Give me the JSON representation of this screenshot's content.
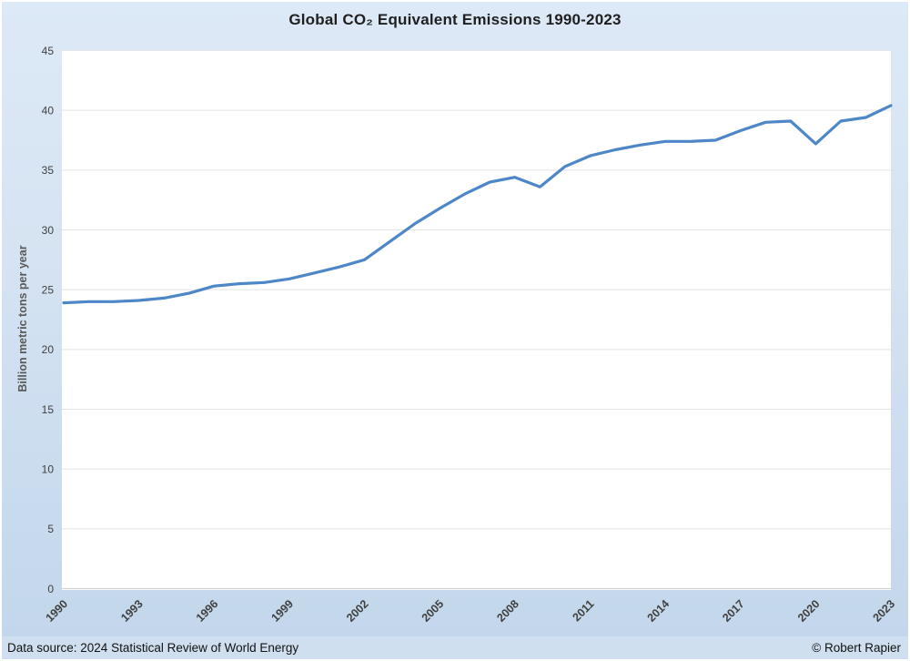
{
  "footer": {
    "source": "Data source: 2024 Statistical Review of World Energy",
    "credit": "© Robert Rapier"
  },
  "colors": {
    "line": "#4e87c7",
    "gridline": "#e4e4e4",
    "axis_line": "#d2d2d2",
    "plot_background": "#ffffff",
    "page_background_top": "#dde9f6",
    "page_background_bottom": "#c2d6eb",
    "tick_label": "#404040",
    "title_text": "#1f1f1f",
    "y_axis_title_text": "#595959"
  },
  "chart_data": {
    "type": "line",
    "title": "Global CO₂ Equivalent Emissions 1990-2023",
    "xlabel": "",
    "ylabel": "Billion metric tons per year",
    "ylim": [
      0,
      45
    ],
    "ytick_step": 5,
    "grid": true,
    "legend": false,
    "xtick_labels": [
      "1990",
      "1993",
      "1996",
      "1999",
      "2002",
      "2005",
      "2008",
      "2011",
      "2014",
      "2017",
      "2020",
      "2023"
    ],
    "x": [
      1990,
      1991,
      1992,
      1993,
      1994,
      1995,
      1996,
      1997,
      1998,
      1999,
      2000,
      2001,
      2002,
      2003,
      2004,
      2005,
      2006,
      2007,
      2008,
      2009,
      2010,
      2011,
      2012,
      2013,
      2014,
      2015,
      2016,
      2017,
      2018,
      2019,
      2020,
      2021,
      2022,
      2023
    ],
    "series": [
      {
        "name": "Global CO2 equivalent emissions",
        "values": [
          23.9,
          24.0,
          24.0,
          24.1,
          24.3,
          24.7,
          25.3,
          25.5,
          25.6,
          25.9,
          26.4,
          26.9,
          27.5,
          29.0,
          30.5,
          31.8,
          33.0,
          34.0,
          34.4,
          33.6,
          35.3,
          36.2,
          36.7,
          37.1,
          37.4,
          37.4,
          37.5,
          38.3,
          39.0,
          39.1,
          37.2,
          39.1,
          39.4,
          40.4
        ]
      }
    ]
  }
}
